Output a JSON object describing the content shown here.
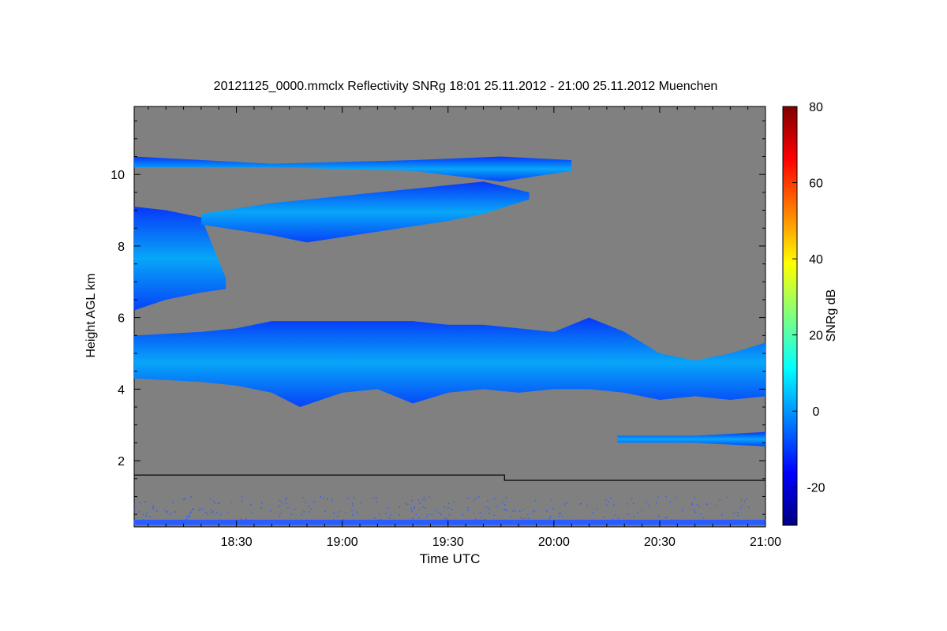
{
  "chart_data": {
    "type": "heatmap",
    "title": "20121125_0000.mmclx Reflectivity SNRg   18:01 25.11.2012 - 21:00 25.11.2012 Muenchen",
    "xlabel": "Time UTC",
    "ylabel": "Height AGL km",
    "colorbar_label": "SNRg dB",
    "x_range_min": [
      1081,
      1260
    ],
    "y_range_km": [
      0.15,
      11.9
    ],
    "x_ticks": [
      {
        "min": 1110,
        "label": "18:30"
      },
      {
        "min": 1140,
        "label": "19:00"
      },
      {
        "min": 1170,
        "label": "19:30"
      },
      {
        "min": 1200,
        "label": "20:00"
      },
      {
        "min": 1230,
        "label": "20:30"
      },
      {
        "min": 1260,
        "label": "21:00"
      }
    ],
    "y_ticks": [
      {
        "km": 2,
        "label": "2"
      },
      {
        "km": 4,
        "label": "4"
      },
      {
        "km": 6,
        "label": "6"
      },
      {
        "km": 8,
        "label": "8"
      },
      {
        "km": 10,
        "label": "10"
      }
    ],
    "colorbar_range_db": [
      -30,
      80
    ],
    "colorbar_ticks": [
      {
        "db": -20,
        "label": "-20"
      },
      {
        "db": 0,
        "label": "0"
      },
      {
        "db": 20,
        "label": "20"
      },
      {
        "db": 40,
        "label": "40"
      },
      {
        "db": 60,
        "label": "60"
      },
      {
        "db": 80,
        "label": "80"
      }
    ],
    "background_color": "#808080",
    "colormap": [
      "#00007f",
      "#0000ff",
      "#007fff",
      "#00ffff",
      "#7fff7f",
      "#ffff00",
      "#ff7f00",
      "#ff0000",
      "#7f0000"
    ],
    "layers": [
      {
        "name": "lower-cloud",
        "x0": 1081,
        "x1": 1260,
        "base": [
          [
            1081,
            4.3
          ],
          [
            1100,
            4.2
          ],
          [
            1110,
            4.1
          ],
          [
            1120,
            3.9
          ],
          [
            1128,
            3.5
          ],
          [
            1140,
            3.9
          ],
          [
            1150,
            4.0
          ],
          [
            1160,
            3.6
          ],
          [
            1170,
            3.9
          ],
          [
            1180,
            4.0
          ],
          [
            1190,
            3.9
          ],
          [
            1200,
            4.0
          ],
          [
            1210,
            4.0
          ],
          [
            1220,
            3.9
          ],
          [
            1230,
            3.7
          ],
          [
            1240,
            3.8
          ],
          [
            1250,
            3.7
          ],
          [
            1260,
            3.8
          ]
        ],
        "top": [
          [
            1081,
            5.5
          ],
          [
            1100,
            5.6
          ],
          [
            1110,
            5.7
          ],
          [
            1120,
            5.9
          ],
          [
            1130,
            5.9
          ],
          [
            1140,
            5.9
          ],
          [
            1150,
            5.9
          ],
          [
            1160,
            5.9
          ],
          [
            1170,
            5.8
          ],
          [
            1180,
            5.8
          ],
          [
            1190,
            5.7
          ],
          [
            1200,
            5.6
          ],
          [
            1210,
            6.0
          ],
          [
            1220,
            5.6
          ],
          [
            1230,
            5.0
          ],
          [
            1240,
            4.8
          ],
          [
            1250,
            5.0
          ],
          [
            1260,
            5.3
          ]
        ]
      },
      {
        "name": "mid-cloud-left",
        "x0": 1081,
        "x1": 1107,
        "base": [
          [
            1081,
            6.2
          ],
          [
            1090,
            6.5
          ],
          [
            1100,
            6.7
          ],
          [
            1107,
            6.8
          ]
        ],
        "top": [
          [
            1081,
            9.1
          ],
          [
            1090,
            9.0
          ],
          [
            1100,
            8.8
          ],
          [
            1107,
            7.1
          ]
        ]
      },
      {
        "name": "upper-cloud-band",
        "x0": 1100,
        "x1": 1193,
        "base": [
          [
            1100,
            8.6
          ],
          [
            1120,
            8.3
          ],
          [
            1130,
            8.1
          ],
          [
            1150,
            8.4
          ],
          [
            1170,
            8.7
          ],
          [
            1180,
            8.9
          ],
          [
            1193,
            9.3
          ]
        ],
        "top": [
          [
            1100,
            8.9
          ],
          [
            1120,
            9.2
          ],
          [
            1140,
            9.4
          ],
          [
            1160,
            9.6
          ],
          [
            1180,
            9.8
          ],
          [
            1193,
            9.5
          ]
        ]
      },
      {
        "name": "cirrus-top",
        "x0": 1081,
        "x1": 1205,
        "base": [
          [
            1081,
            10.2
          ],
          [
            1120,
            10.2
          ],
          [
            1160,
            10.1
          ],
          [
            1185,
            9.8
          ],
          [
            1205,
            10.1
          ]
        ],
        "top": [
          [
            1081,
            10.5
          ],
          [
            1120,
            10.3
          ],
          [
            1160,
            10.4
          ],
          [
            1185,
            10.5
          ],
          [
            1205,
            10.4
          ]
        ]
      },
      {
        "name": "low-stratus",
        "x0": 1218,
        "x1": 1260,
        "base": [
          [
            1218,
            2.5
          ],
          [
            1240,
            2.5
          ],
          [
            1260,
            2.4
          ]
        ],
        "top": [
          [
            1218,
            2.7
          ],
          [
            1240,
            2.7
          ],
          [
            1260,
            2.8
          ]
        ]
      }
    ],
    "line": {
      "name": "boundary-line",
      "points": [
        [
          1081,
          1.6
        ],
        [
          1186,
          1.6
        ],
        [
          1186,
          1.45
        ],
        [
          1260,
          1.45
        ]
      ]
    }
  }
}
